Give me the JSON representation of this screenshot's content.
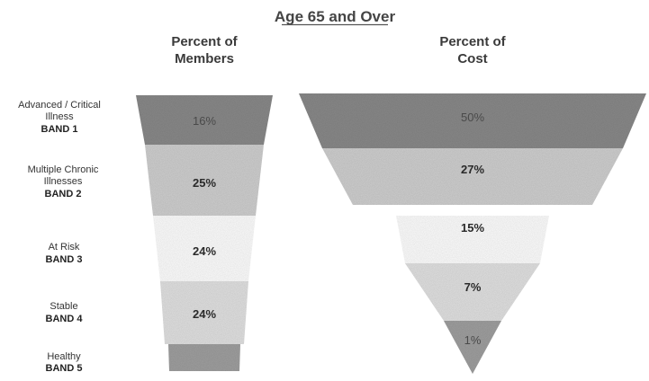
{
  "chart_data": {
    "type": "funnel",
    "title": "Age 65 and Over",
    "categories": [
      {
        "line1": "Advanced / Critical",
        "line2": "Illness",
        "band": "BAND 1"
      },
      {
        "line1": "Multiple Chronic",
        "line2": "Illnesses",
        "band": "BAND 2"
      },
      {
        "line1": "At Risk",
        "line2": "",
        "band": "BAND 3"
      },
      {
        "line1": "Stable",
        "line2": "",
        "band": "BAND 4"
      },
      {
        "line1": "Healthy",
        "line2": "",
        "band": "BAND 5"
      }
    ],
    "series": [
      {
        "name_line1": "Percent of",
        "name_line2": "Members",
        "values": [
          16,
          25,
          24,
          24,
          11
        ],
        "labels": [
          "16%",
          "25%",
          "24%",
          "24%",
          ""
        ]
      },
      {
        "name_line1": "Percent of",
        "name_line2": "Cost",
        "values": [
          50,
          27,
          15,
          7,
          1
        ],
        "labels": [
          "50%",
          "27%",
          "15%",
          "7%",
          "1%"
        ]
      }
    ],
    "colors": {
      "band1": "#8a8a8a",
      "band2": "#d0d0d0",
      "band3": "#ffffff",
      "band4": "#e2e2e2",
      "band5": "#a0a0a0",
      "text": "#222222",
      "title": "#444444"
    }
  }
}
